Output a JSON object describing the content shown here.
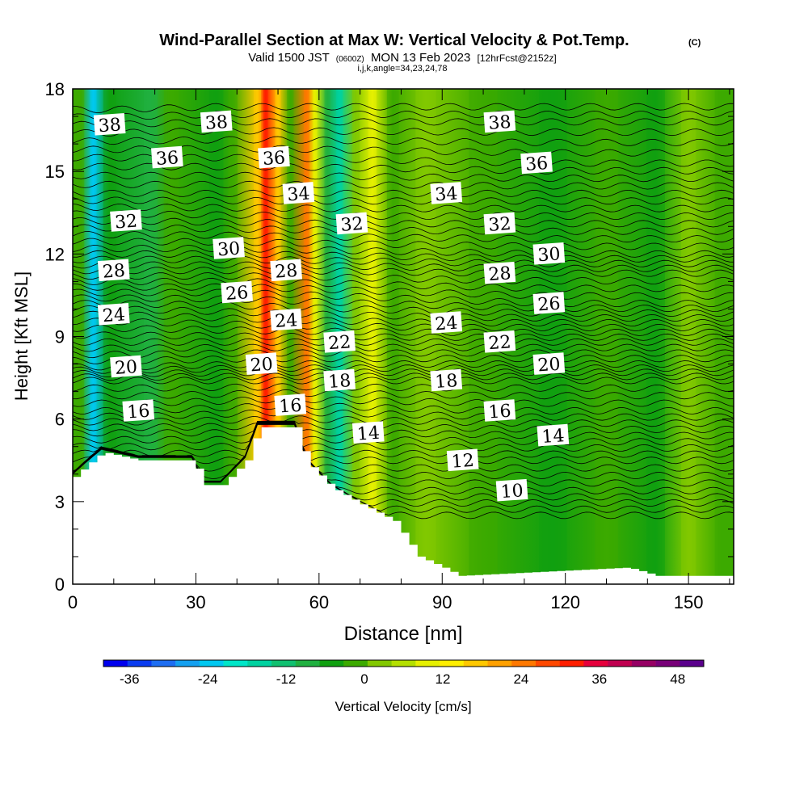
{
  "header": {
    "title": "Wind-Parallel Section at Max W: Vertical Velocity & Pot.Temp.",
    "copyright": "(C)",
    "valid_prefix": "Valid 1500 JST",
    "valid_utc": "(0600Z)",
    "valid_date": "MON 13 Feb 2023",
    "forecast": "[12hrFcst@2152z]",
    "grid_info": "i,j,k,angle=34,23,24,78"
  },
  "chart_data": {
    "type": "heatmap",
    "title": "Wind-Parallel Section at Max W: Vertical Velocity & Pot.Temp.",
    "xlabel": "Distance [nm]",
    "ylabel": "Height [Kft MSL]",
    "xlim": [
      0,
      161
    ],
    "ylim": [
      0,
      18
    ],
    "x_ticks": [
      "0",
      "30",
      "60",
      "90",
      "120",
      "150"
    ],
    "y_ticks": [
      "0",
      "3",
      "6",
      "9",
      "12",
      "15",
      "18"
    ],
    "fill_variable": "Vertical Velocity [cm/s]",
    "contour_variable": "Potential temperature (C)",
    "colorbar": {
      "label": "Vertical Velocity [cm/s]",
      "tick_labels": [
        "-36",
        "-24",
        "-12",
        "0",
        "12",
        "24",
        "36",
        "48"
      ],
      "min": -40,
      "max": 52,
      "step": 4,
      "colors": [
        "#0000ee",
        "#0a3cf0",
        "#1e6ef2",
        "#14a0f0",
        "#00c8f0",
        "#00e6c8",
        "#00d2a0",
        "#10c070",
        "#20b040",
        "#10a010",
        "#3caa00",
        "#82c800",
        "#b4e000",
        "#e6f000",
        "#ffee00",
        "#ffc800",
        "#ffa000",
        "#ff7800",
        "#ff4800",
        "#ff1e00",
        "#e6003c",
        "#c00050",
        "#960064",
        "#780078",
        "#5a008c"
      ]
    },
    "velocity_bands": [
      {
        "x_center": 2,
        "value": 0
      },
      {
        "x_center": 5,
        "value": -22
      },
      {
        "x_center": 9,
        "value": -2
      },
      {
        "x_center": 19,
        "value": -6
      },
      {
        "x_center": 24,
        "value": 0
      },
      {
        "x_center": 35,
        "value": -4
      },
      {
        "x_center": 39,
        "value": 2
      },
      {
        "x_center": 45,
        "value": 22
      },
      {
        "x_center": 47,
        "value": 36
      },
      {
        "x_center": 50,
        "value": 20
      },
      {
        "x_center": 53,
        "value": 0
      },
      {
        "x_center": 57,
        "value": 28
      },
      {
        "x_center": 59,
        "value": 12
      },
      {
        "x_center": 62,
        "value": -6
      },
      {
        "x_center": 65,
        "value": -16
      },
      {
        "x_center": 69,
        "value": 4
      },
      {
        "x_center": 73,
        "value": 14
      },
      {
        "x_center": 78,
        "value": 2
      },
      {
        "x_center": 86,
        "value": 6
      },
      {
        "x_center": 100,
        "value": 0
      },
      {
        "x_center": 117,
        "value": -4
      },
      {
        "x_center": 130,
        "value": 2
      },
      {
        "x_center": 142,
        "value": -2
      },
      {
        "x_center": 150,
        "value": 4
      },
      {
        "x_center": 158,
        "value": 0
      }
    ],
    "terrain_height": [
      {
        "x": 0,
        "y": 3.9
      },
      {
        "x": 3,
        "y": 4.3
      },
      {
        "x": 7,
        "y": 4.8
      },
      {
        "x": 16,
        "y": 4.5
      },
      {
        "x": 29,
        "y": 4.5
      },
      {
        "x": 32,
        "y": 3.6
      },
      {
        "x": 36,
        "y": 3.6
      },
      {
        "x": 42,
        "y": 4.5
      },
      {
        "x": 45,
        "y": 5.7
      },
      {
        "x": 54,
        "y": 5.7
      },
      {
        "x": 57,
        "y": 4.4
      },
      {
        "x": 63,
        "y": 3.5
      },
      {
        "x": 70,
        "y": 2.9
      },
      {
        "x": 78,
        "y": 2.3
      },
      {
        "x": 84,
        "y": 1.0
      },
      {
        "x": 90,
        "y": 0.6
      },
      {
        "x": 94,
        "y": 0.3
      },
      {
        "x": 135,
        "y": 0.6
      },
      {
        "x": 142,
        "y": 0.3
      },
      {
        "x": 161,
        "y": 0.3
      }
    ],
    "contour_labels": [
      {
        "text": "38",
        "x": 9,
        "y": 16.7
      },
      {
        "text": "38",
        "x": 35,
        "y": 16.8
      },
      {
        "text": "38",
        "x": 104,
        "y": 16.8
      },
      {
        "text": "36",
        "x": 23,
        "y": 15.5
      },
      {
        "text": "36",
        "x": 49,
        "y": 15.5
      },
      {
        "text": "36",
        "x": 113,
        "y": 15.3
      },
      {
        "text": "34",
        "x": 55,
        "y": 14.2
      },
      {
        "text": "34",
        "x": 91,
        "y": 14.2
      },
      {
        "text": "32",
        "x": 13,
        "y": 13.2
      },
      {
        "text": "32",
        "x": 68,
        "y": 13.1
      },
      {
        "text": "32",
        "x": 104,
        "y": 13.1
      },
      {
        "text": "30",
        "x": 38,
        "y": 12.2
      },
      {
        "text": "30",
        "x": 116,
        "y": 12.0
      },
      {
        "text": "28",
        "x": 10,
        "y": 11.4
      },
      {
        "text": "28",
        "x": 52,
        "y": 11.4
      },
      {
        "text": "28",
        "x": 104,
        "y": 11.3
      },
      {
        "text": "26",
        "x": 40,
        "y": 10.6
      },
      {
        "text": "26",
        "x": 116,
        "y": 10.2
      },
      {
        "text": "24",
        "x": 10,
        "y": 9.8
      },
      {
        "text": "24",
        "x": 52,
        "y": 9.6
      },
      {
        "text": "24",
        "x": 91,
        "y": 9.5
      },
      {
        "text": "22",
        "x": 65,
        "y": 8.8
      },
      {
        "text": "22",
        "x": 104,
        "y": 8.8
      },
      {
        "text": "20",
        "x": 13,
        "y": 7.9
      },
      {
        "text": "20",
        "x": 46,
        "y": 8.0
      },
      {
        "text": "20",
        "x": 116,
        "y": 8.0
      },
      {
        "text": "18",
        "x": 65,
        "y": 7.4
      },
      {
        "text": "18",
        "x": 91,
        "y": 7.4
      },
      {
        "text": "16",
        "x": 16,
        "y": 6.3
      },
      {
        "text": "16",
        "x": 53,
        "y": 6.5
      },
      {
        "text": "16",
        "x": 104,
        "y": 6.3
      },
      {
        "text": "14",
        "x": 72,
        "y": 5.5
      },
      {
        "text": "14",
        "x": 117,
        "y": 5.4
      },
      {
        "text": "12",
        "x": 95,
        "y": 4.5
      },
      {
        "text": "10",
        "x": 107,
        "y": 3.4
      }
    ]
  }
}
